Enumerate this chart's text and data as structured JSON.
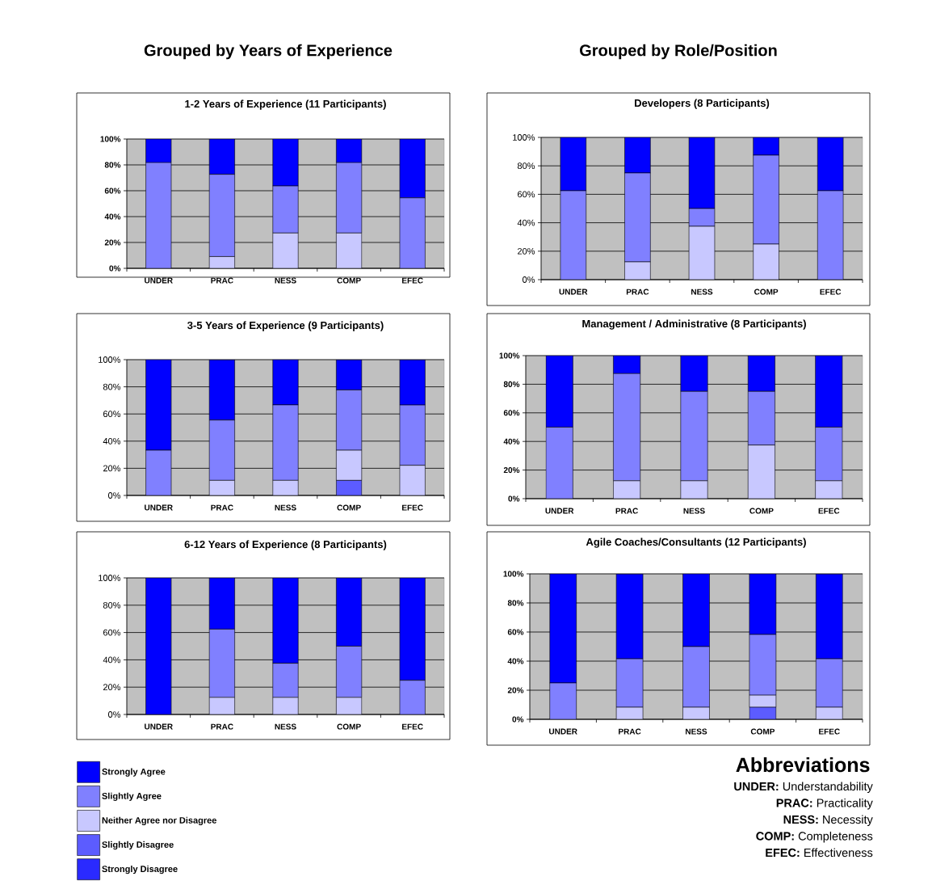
{
  "chart_data": [
    {
      "type": "bar",
      "title": "1-2 Years of Experience (11 Participants)",
      "annotations": [
        "Grouped by Years of Experience"
      ],
      "categories": [
        "UNDER",
        "PRAC",
        "NESS",
        "COMP",
        "EFEC"
      ],
      "stacked": true,
      "grid": "y",
      "ylim": [
        0,
        100
      ],
      "yticks": [
        {
          "value": 0,
          "label": "0%"
        },
        {
          "value": 20,
          "label": "20%"
        },
        {
          "value": 40,
          "label": "40%"
        },
        {
          "value": 60,
          "label": "60%"
        },
        {
          "value": 80,
          "label": "80%"
        },
        {
          "value": 100,
          "label": "100%"
        }
      ],
      "series": [
        {
          "color": "#2a2aff",
          "values": [
            0,
            0,
            0,
            0,
            0
          ]
        },
        {
          "color": "#5c5cff",
          "values": [
            0,
            0,
            0,
            0,
            0
          ]
        },
        {
          "color": "#c8c8ff",
          "values": [
            0,
            9.1,
            27.3,
            27.3,
            0
          ]
        },
        {
          "color": "#8080ff",
          "values": [
            81.8,
            63.6,
            36.4,
            54.5,
            54.5
          ]
        },
        {
          "color": "#0000ff",
          "values": [
            18.2,
            27.3,
            36.4,
            18.2,
            45.5
          ]
        }
      ]
    },
    {
      "type": "bar",
      "title": "Developers (8 Participants)",
      "annotations": [
        "Grouped by Role/Position"
      ],
      "categories": [
        "UNDER",
        "PRAC",
        "NESS",
        "COMP",
        "EFEC"
      ],
      "stacked": true,
      "grid": "y",
      "ylim": [
        0,
        100
      ],
      "yticks": [
        {
          "value": 0,
          "label": "0%"
        },
        {
          "value": 20,
          "label": "20%"
        },
        {
          "value": 40,
          "label": "40%"
        },
        {
          "value": 60,
          "label": "60%"
        },
        {
          "value": 80,
          "label": "80%"
        },
        {
          "value": 100,
          "label": "100%"
        }
      ],
      "series": [
        {
          "color": "#2a2aff",
          "values": [
            0,
            0,
            0,
            0,
            0
          ]
        },
        {
          "color": "#5c5cff",
          "values": [
            0,
            0,
            0,
            0,
            0
          ]
        },
        {
          "color": "#c8c8ff",
          "values": [
            0,
            12.5,
            37.5,
            25,
            0
          ]
        },
        {
          "color": "#8080ff",
          "values": [
            62.5,
            62.5,
            12.5,
            62.5,
            62.5
          ]
        },
        {
          "color": "#0000ff",
          "values": [
            37.5,
            25,
            50,
            12.5,
            37.5
          ]
        }
      ]
    },
    {
      "type": "bar",
      "title": "3-5 Years of Experience (9 Participants)",
      "categories": [
        "UNDER",
        "PRAC",
        "NESS",
        "COMP",
        "EFEC"
      ],
      "stacked": true,
      "grid": "y",
      "ylim": [
        0,
        100
      ],
      "yticks": [
        {
          "value": 0,
          "label": "0%"
        },
        {
          "value": 20,
          "label": "20%"
        },
        {
          "value": 40,
          "label": "40%"
        },
        {
          "value": 60,
          "label": "60%"
        },
        {
          "value": 80,
          "label": "80%"
        },
        {
          "value": 100,
          "label": "100%"
        }
      ],
      "series": [
        {
          "color": "#2a2aff",
          "values": [
            0,
            0,
            0,
            0,
            0
          ]
        },
        {
          "color": "#5c5cff",
          "values": [
            0,
            0,
            0,
            11.1,
            0
          ]
        },
        {
          "color": "#c8c8ff",
          "values": [
            0,
            11.1,
            11.1,
            22.2,
            22.2
          ]
        },
        {
          "color": "#8080ff",
          "values": [
            33.3,
            44.4,
            55.6,
            44.4,
            44.4
          ]
        },
        {
          "color": "#0000ff",
          "values": [
            66.7,
            44.4,
            33.3,
            22.2,
            33.3
          ]
        }
      ]
    },
    {
      "type": "bar",
      "title": "Management / Administrative (8 Participants)",
      "categories": [
        "UNDER",
        "PRAC",
        "NESS",
        "COMP",
        "EFEC"
      ],
      "stacked": true,
      "grid": "y",
      "ylim": [
        0,
        100
      ],
      "yticks": [
        {
          "value": 0,
          "label": "0%"
        },
        {
          "value": 20,
          "label": "20%"
        },
        {
          "value": 40,
          "label": "40%"
        },
        {
          "value": 60,
          "label": "60%"
        },
        {
          "value": 80,
          "label": "80%"
        },
        {
          "value": 100,
          "label": "100%"
        }
      ],
      "series": [
        {
          "color": "#2a2aff",
          "values": [
            0,
            0,
            0,
            0,
            0
          ]
        },
        {
          "color": "#5c5cff",
          "values": [
            0,
            0,
            0,
            0,
            0
          ]
        },
        {
          "color": "#c8c8ff",
          "values": [
            0,
            12.5,
            12.5,
            37.5,
            12.5
          ]
        },
        {
          "color": "#8080ff",
          "values": [
            50,
            75,
            62.5,
            37.5,
            37.5
          ]
        },
        {
          "color": "#0000ff",
          "values": [
            50,
            12.5,
            25,
            25,
            50
          ]
        }
      ]
    },
    {
      "type": "bar",
      "title": "6-12 Years of Experience (8 Participants)",
      "categories": [
        "UNDER",
        "PRAC",
        "NESS",
        "COMP",
        "EFEC"
      ],
      "stacked": true,
      "grid": "y",
      "legend": "bottom left",
      "ylim": [
        0,
        100
      ],
      "yticks": [
        {
          "value": 0,
          "label": "0%"
        },
        {
          "value": 20,
          "label": "20%"
        },
        {
          "value": 40,
          "label": "40%"
        },
        {
          "value": 60,
          "label": "60%"
        },
        {
          "value": 80,
          "label": "80%"
        },
        {
          "value": 100,
          "label": "100%"
        }
      ],
      "series": [
        {
          "name": "Strongly Disagree",
          "color": "#2a2aff",
          "values": [
            0,
            0,
            0,
            0,
            0
          ]
        },
        {
          "name": "Slightly Disagree",
          "color": "#5c5cff",
          "values": [
            0,
            0,
            0,
            0,
            0
          ]
        },
        {
          "name": "Neither Agree nor Disagree",
          "color": "#c8c8ff",
          "values": [
            0,
            12.5,
            12.5,
            12.5,
            0
          ]
        },
        {
          "name": "Slightly Agree",
          "color": "#8080ff",
          "values": [
            0,
            50,
            25,
            37.5,
            25
          ]
        },
        {
          "name": "Strongly Agree",
          "color": "#0000ff",
          "values": [
            100,
            37.5,
            62.5,
            50,
            75
          ]
        }
      ]
    },
    {
      "type": "bar",
      "title": "Agile Coaches/Consultants (12 Participants)",
      "categories": [
        "UNDER",
        "PRAC",
        "NESS",
        "COMP",
        "EFEC"
      ],
      "stacked": true,
      "grid": "y",
      "ylim": [
        0,
        100
      ],
      "yticks": [
        {
          "value": 0,
          "label": "0%"
        },
        {
          "value": 20,
          "label": "20%"
        },
        {
          "value": 40,
          "label": "40%"
        },
        {
          "value": 60,
          "label": "60%"
        },
        {
          "value": 80,
          "label": "80%"
        },
        {
          "value": 100,
          "label": "100%"
        }
      ],
      "series": [
        {
          "color": "#2a2aff",
          "values": [
            0,
            0,
            0,
            0,
            0
          ]
        },
        {
          "color": "#5c5cff",
          "values": [
            0,
            0,
            0,
            8.3,
            0
          ]
        },
        {
          "color": "#c8c8ff",
          "values": [
            0,
            8.3,
            8.3,
            8.3,
            8.3
          ]
        },
        {
          "color": "#8080ff",
          "values": [
            25,
            33.3,
            41.7,
            41.7,
            33.3
          ]
        },
        {
          "color": "#0000ff",
          "values": [
            75,
            58.3,
            50,
            41.7,
            58.3
          ]
        }
      ]
    },
    {
      "type": "other",
      "title": "Abbreviations",
      "annotations": [
        "**UNDER:** Understandability",
        "**PRAC:** Practicality",
        "**NESS:** Necessity",
        "**COMP:** Completeness",
        "**EFEC:** Effectiveness"
      ]
    }
  ]
}
